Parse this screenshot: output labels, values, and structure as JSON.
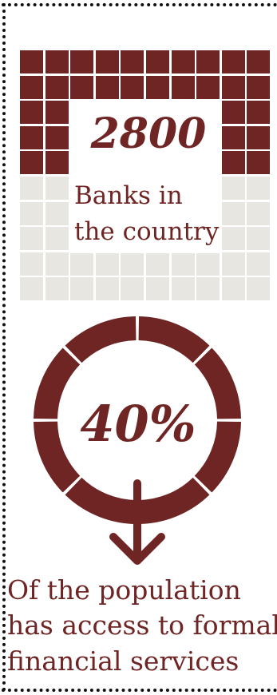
{
  "banks": {
    "count": "2800",
    "label_line1": "Banks in",
    "label_line2": "the country"
  },
  "population_access": {
    "percent_label": "40%",
    "percent_value": 40,
    "caption_line1": "Of the population",
    "caption_line2": "has access to formal",
    "caption_line3": "financial services"
  },
  "colors": {
    "accent": "#6e2524",
    "grid_empty": "#e8e6e0",
    "background": "#ffffff",
    "frame": "#111111"
  },
  "icons": [
    "down-arrow-icon"
  ]
}
